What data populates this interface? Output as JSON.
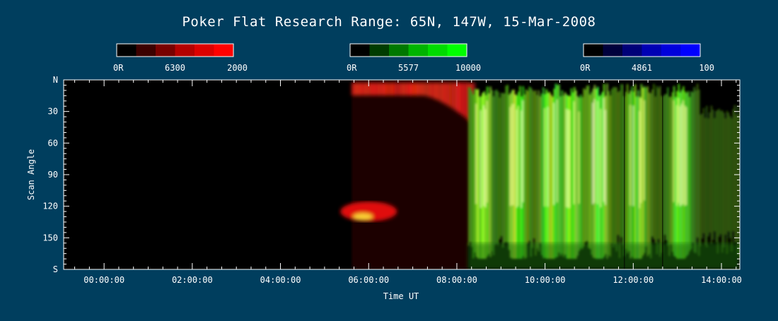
{
  "chart_data": {
    "type": "heatmap",
    "title": "Poker Flat Research Range: 65N, 147W, 15-Mar-2008",
    "xlabel": "Time UT",
    "ylabel": "Scan Angle",
    "xlim": [
      "-00:55",
      "14:25"
    ],
    "ylim": [
      0,
      180
    ],
    "x_ticks": [
      "00:00:00",
      "02:00:00",
      "04:00:00",
      "06:00:00",
      "08:00:00",
      "10:00:00",
      "12:00:00",
      "14:00:00"
    ],
    "y_ticks": [
      "N",
      "30",
      "60",
      "90",
      "120",
      "150",
      "S"
    ],
    "y_tick_values": [
      0,
      30,
      60,
      90,
      120,
      150,
      180
    ],
    "colorbars": [
      {
        "name": "6300",
        "min_label": "0R",
        "mid_label": "6300",
        "max_label": "2000",
        "colors": [
          "#000000",
          "#3c0000",
          "#780000",
          "#b40000",
          "#dc0000",
          "#ff0000"
        ]
      },
      {
        "name": "5577",
        "min_label": "0R",
        "mid_label": "5577",
        "max_label": "10000",
        "colors": [
          "#000000",
          "#003c00",
          "#007800",
          "#00b400",
          "#00dc00",
          "#00ff00"
        ]
      },
      {
        "name": "4861",
        "min_label": "0R",
        "mid_label": "4861",
        "max_label": "100",
        "colors": [
          "#000000",
          "#00003c",
          "#000078",
          "#0000b4",
          "#0000dc",
          "#0000ff"
        ]
      }
    ],
    "data_start": "05:37",
    "data_end": "14:25",
    "grid": false
  }
}
